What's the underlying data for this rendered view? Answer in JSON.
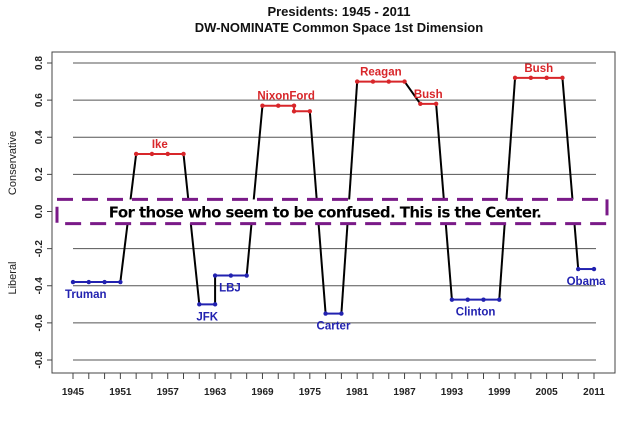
{
  "chart_data": {
    "type": "line",
    "title": "Presidents: 1945 - 2011",
    "subtitle": "DW-NOMINATE Common Space 1st Dimension",
    "ylabel_top": "Conservative",
    "ylabel_bottom": "Liberal",
    "xlabel": "",
    "xlim": [
      1945,
      2011
    ],
    "ylim": [
      -0.8,
      0.8
    ],
    "yticks": [
      "0.8",
      "0.6",
      "0.4",
      "0.2",
      "0.0",
      "-0.2",
      "-0.4",
      "-0.6",
      "-0.8"
    ],
    "ytick_values": [
      0.8,
      0.6,
      0.4,
      0.2,
      0.0,
      -0.2,
      -0.4,
      -0.6,
      -0.8
    ],
    "xticks": [
      "1945",
      "1951",
      "1957",
      "1963",
      "1969",
      "1975",
      "1981",
      "1987",
      "1993",
      "1999",
      "2005",
      "2011"
    ],
    "grid": true,
    "colors": {
      "republican": "#d8262a",
      "democrat": "#2222b0",
      "connector": "#000000",
      "center_box": "#7a1a88"
    },
    "series": [
      {
        "name": "Truman",
        "party": "democrat",
        "label_pos": "below-left",
        "x": [
          1945,
          1947,
          1949,
          1951
        ],
        "y": [
          -0.38,
          -0.38,
          -0.38,
          -0.38
        ]
      },
      {
        "name": "Ike",
        "party": "republican",
        "label_pos": "above",
        "x": [
          1953,
          1955,
          1957,
          1959
        ],
        "y": [
          0.31,
          0.31,
          0.31,
          0.31
        ]
      },
      {
        "name": "JFK",
        "party": "democrat",
        "label_pos": "below",
        "x": [
          1961,
          1963
        ],
        "y": [
          -0.5,
          -0.5
        ]
      },
      {
        "name": "LBJ",
        "party": "democrat",
        "label_pos": "below-right",
        "x": [
          1963,
          1965,
          1967
        ],
        "y": [
          -0.345,
          -0.345,
          -0.345
        ]
      },
      {
        "name": "NixonFord",
        "party": "republican",
        "label_pos": "above",
        "x": [
          1969,
          1971,
          1973,
          1973,
          1975
        ],
        "y": [
          0.57,
          0.57,
          0.57,
          0.54,
          0.54
        ]
      },
      {
        "name": "Carter",
        "party": "democrat",
        "label_pos": "below",
        "x": [
          1977,
          1979
        ],
        "y": [
          -0.55,
          -0.55
        ]
      },
      {
        "name": "Reagan",
        "party": "republican",
        "label_pos": "above",
        "x": [
          1981,
          1983,
          1985,
          1987
        ],
        "y": [
          0.7,
          0.7,
          0.7,
          0.7
        ]
      },
      {
        "name": "Bush",
        "party": "republican",
        "label_pos": "above",
        "x": [
          1989,
          1991
        ],
        "y": [
          0.58,
          0.58
        ]
      },
      {
        "name": "Clinton",
        "party": "democrat",
        "label_pos": "below",
        "x": [
          1993,
          1995,
          1997,
          1999
        ],
        "y": [
          -0.475,
          -0.475,
          -0.475,
          -0.475
        ]
      },
      {
        "name": "Bush",
        "party": "republican",
        "label_pos": "above",
        "x": [
          2001,
          2003,
          2005,
          2007
        ],
        "y": [
          0.72,
          0.72,
          0.72,
          0.72
        ]
      },
      {
        "name": "Obama",
        "party": "democrat",
        "label_pos": "below",
        "x": [
          2009,
          2011
        ],
        "y": [
          -0.31,
          -0.31
        ]
      }
    ],
    "annotation": {
      "text": "For those who seem to be confused.  This is the Center.",
      "y_range": [
        -0.065,
        0.065
      ]
    }
  }
}
